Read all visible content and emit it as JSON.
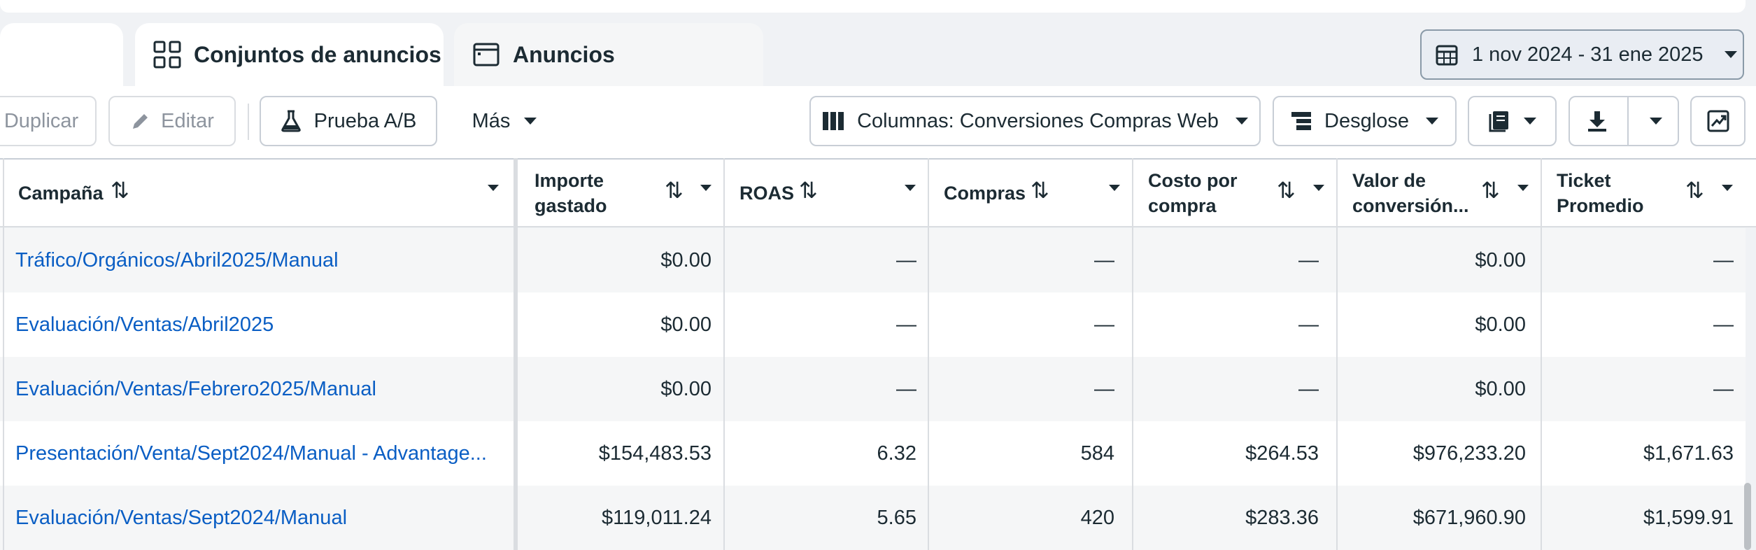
{
  "tabs": [
    {
      "label": "Conjuntos de anuncios",
      "icon": "grid-icon"
    },
    {
      "label": "Anuncios",
      "icon": "ad-window-icon"
    }
  ],
  "date_range": {
    "label": "1 nov 2024 - 31 ene 2025",
    "icon": "calendar-icon"
  },
  "toolbar": {
    "duplicate": "Duplicar",
    "edit": "Editar",
    "ab_test": "Prueba A/B",
    "more": "Más",
    "columns": "Columnas: Conversiones Compras Web",
    "breakdown": "Desglose"
  },
  "columns": {
    "campaign": "Campaña",
    "spend_1": "Importe",
    "spend_2": "gastado",
    "roas": "ROAS",
    "purchases": "Compras",
    "cpp_1": "Costo por",
    "cpp_2": "compra",
    "value_1": "Valor de",
    "value_2": "conversión...",
    "ticket_1": "Ticket",
    "ticket_2": "Promedio"
  },
  "rows": [
    {
      "campaign": "Tráfico/Orgánicos/Abril2025/Manual",
      "spend": "$0.00",
      "roas": "—",
      "purchases": "—",
      "cpp": "—",
      "value": "$0.00",
      "ticket": "—"
    },
    {
      "campaign": "Evaluación/Ventas/Abril2025",
      "spend": "$0.00",
      "roas": "—",
      "purchases": "—",
      "cpp": "—",
      "value": "$0.00",
      "ticket": "—"
    },
    {
      "campaign": "Evaluación/Ventas/Febrero2025/Manual",
      "spend": "$0.00",
      "roas": "—",
      "purchases": "—",
      "cpp": "—",
      "value": "$0.00",
      "ticket": "—"
    },
    {
      "campaign": "Presentación/Venta/Sept2024/Manual - Advantage...",
      "spend": "$154,483.53",
      "roas": "6.32",
      "purchases": "584",
      "cpp": "$264.53",
      "value": "$976,233.20",
      "ticket": "$1,671.63"
    },
    {
      "campaign": "Evaluación/Ventas/Sept2024/Manual",
      "spend": "$119,011.24",
      "roas": "5.65",
      "purchases": "420",
      "cpp": "$283.36",
      "value": "$671,960.90",
      "ticket": "$1,599.91"
    }
  ]
}
